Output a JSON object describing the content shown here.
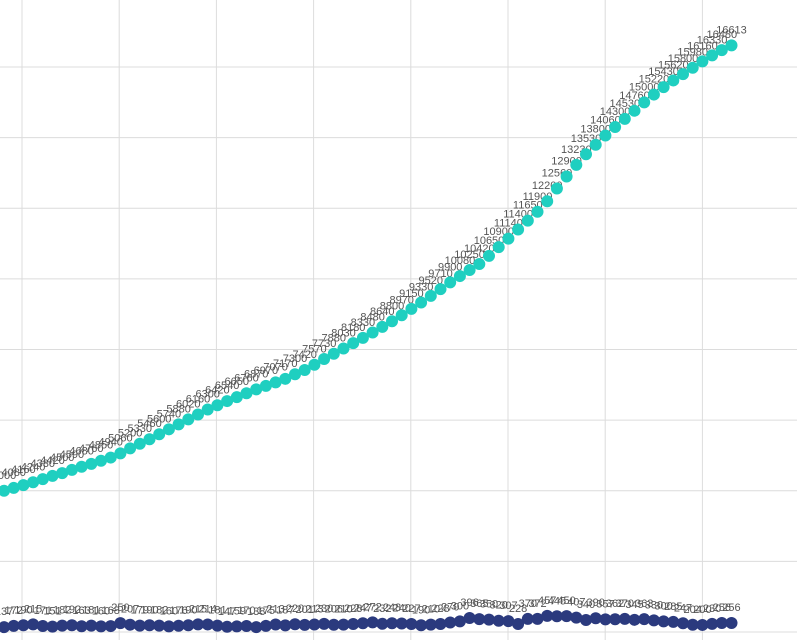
{
  "chart_data": {
    "type": "scatter",
    "ylim": [
      0,
      18000
    ],
    "yticks": [
      0,
      2000,
      4000,
      6000,
      8000,
      10000,
      12000,
      14000,
      16000
    ],
    "grid": true,
    "series": [
      {
        "color": "#1fcfc0",
        "values": [
          4000,
          4080,
          4160,
          4240,
          4330,
          4420,
          4500,
          4590,
          4680,
          4760,
          4850,
          4940,
          5060,
          5200,
          5330,
          5460,
          5600,
          5740,
          5880,
          6020,
          6160,
          6300,
          6420,
          6540,
          6650,
          6760,
          6870,
          6970,
          7070,
          7170,
          7300,
          7420,
          7570,
          7730,
          7880,
          8030,
          8180,
          8330,
          8480,
          8640,
          8800,
          8970,
          9150,
          9330,
          9520,
          9710,
          9900,
          10080,
          10250,
          10420,
          10650,
          10900,
          11140,
          11400,
          11650,
          11900,
          12200,
          12560,
          12900,
          13230,
          13530,
          13800,
          14060,
          14300,
          14530,
          14760,
          15000,
          15220,
          15430,
          15620,
          15800,
          15980,
          16160,
          16330,
          16480,
          16613
        ]
      },
      {
        "color": "#2b3a7e",
        "values": [
          137,
          172,
          190,
          215,
          171,
          151,
          182,
          192,
          163,
          181,
          160,
          168,
          250,
          207,
          179,
          190,
          182,
          160,
          176,
          190,
          215,
          214,
          181,
          147,
          159,
          170,
          138,
          175,
          213,
          187,
          220,
          201,
          213,
          230,
          206,
          210,
          228,
          247,
          272,
          232,
          248,
          240,
          227,
          190,
          210,
          228,
          270,
          300,
          396,
          365,
          350,
          320,
          307,
          228,
          370,
          372,
          457,
          445,
          450,
          407,
          340,
          390,
          357,
          362,
          370,
          345,
          363,
          330,
          300,
          285,
          247,
          204,
          200,
          230,
          256,
          256
        ]
      }
    ]
  }
}
